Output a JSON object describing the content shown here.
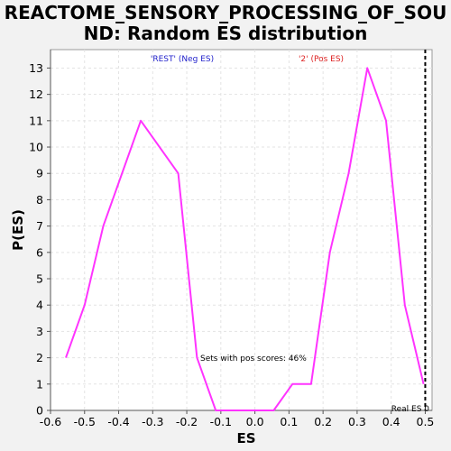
{
  "chart_data": {
    "type": "line",
    "title_lines": [
      "REACTOME_SENSORY_PROCESSING_OF_SOU",
      "ND: Random ES distribution"
    ],
    "xlabel": "ES",
    "ylabel": "P(ES)",
    "xlim": [
      -0.6,
      0.52
    ],
    "ylim": [
      0,
      13.7
    ],
    "x_ticks": [
      -0.6,
      -0.5,
      -0.4,
      -0.3,
      -0.2,
      -0.1,
      0.0,
      0.1,
      0.2,
      0.3,
      0.4,
      0.5
    ],
    "x_tick_labels": [
      "-0.6",
      "-0.5",
      "-0.4",
      "-0.3",
      "-0.2",
      "-0.1",
      "0.0",
      "0.1",
      "0.2",
      "0.3",
      "0.4",
      "0.5"
    ],
    "y_ticks": [
      0,
      1,
      2,
      3,
      4,
      5,
      6,
      7,
      8,
      9,
      10,
      11,
      12,
      13
    ],
    "y_tick_labels": [
      "0",
      "1",
      "2",
      "3",
      "4",
      "5",
      "6",
      "7",
      "8",
      "9",
      "10",
      "11",
      "12",
      "13"
    ],
    "grid": true,
    "series": [
      {
        "color": "#ff33ff",
        "x": [
          -0.555,
          -0.5,
          -0.445,
          -0.335,
          -0.225,
          -0.17,
          -0.115,
          0.055,
          0.11,
          0.165,
          0.22,
          0.275,
          0.33,
          0.385,
          0.44,
          0.495
        ],
        "y": [
          2,
          4,
          7,
          11,
          9,
          2,
          0,
          0,
          1,
          1,
          6,
          9,
          13,
          11,
          4,
          1
        ]
      }
    ],
    "real_es": {
      "x": 0.5,
      "label": "Real ES 0",
      "color": "#000000"
    },
    "annotations": {
      "neg_label": "'REST' (Neg ES)",
      "neg_color": "#2222cc",
      "pos_label": "'2' (Pos ES)",
      "pos_color": "#dd2222",
      "sets_label": "Sets with pos scores: 46%"
    }
  }
}
